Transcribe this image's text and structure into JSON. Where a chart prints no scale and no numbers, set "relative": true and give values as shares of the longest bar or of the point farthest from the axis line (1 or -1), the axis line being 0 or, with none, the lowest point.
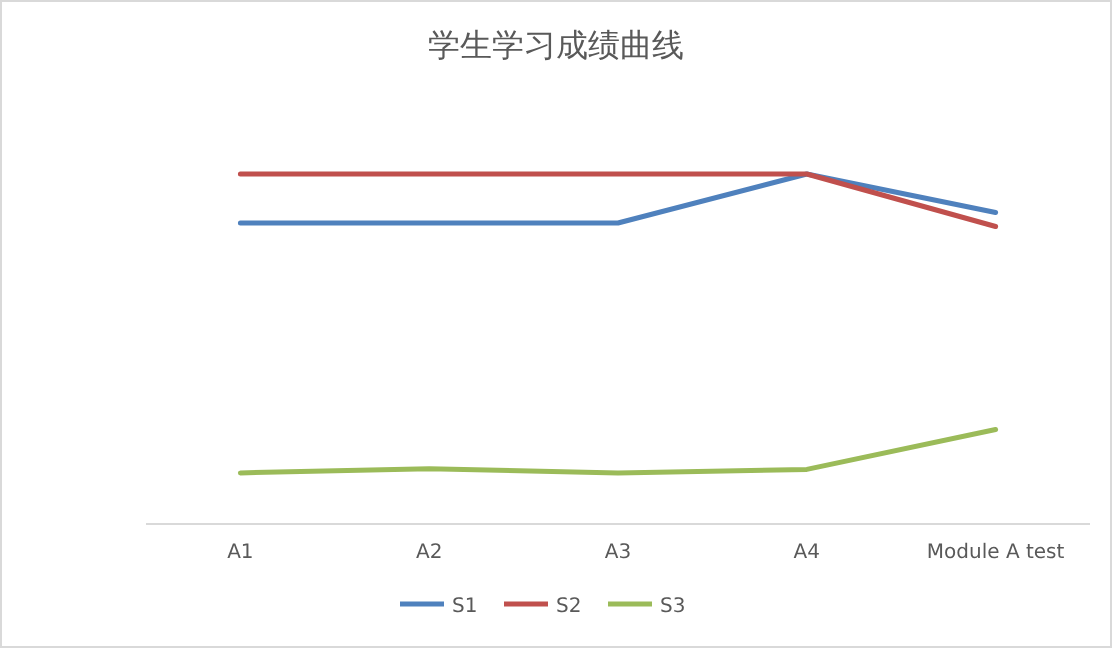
{
  "chart_data": {
    "type": "line",
    "title": "学生学习成绩曲线",
    "categories": [
      "A1",
      "A2",
      "A3",
      "A4",
      "Module A test"
    ],
    "series": [
      {
        "name": "S1",
        "color": "#4f81bd",
        "values": [
          0.86,
          0.86,
          0.86,
          1,
          0.89
        ]
      },
      {
        "name": "S2",
        "color": "#c0504d",
        "values": [
          1,
          1,
          1,
          1,
          0.85
        ]
      },
      {
        "name": "S3",
        "color": "#9bbb59",
        "values": [
          0.146,
          0.158,
          0.146,
          0.156,
          0.27
        ]
      }
    ],
    "relative": true,
    "legend": "bottom",
    "marker": "none",
    "line_style": "solid"
  }
}
